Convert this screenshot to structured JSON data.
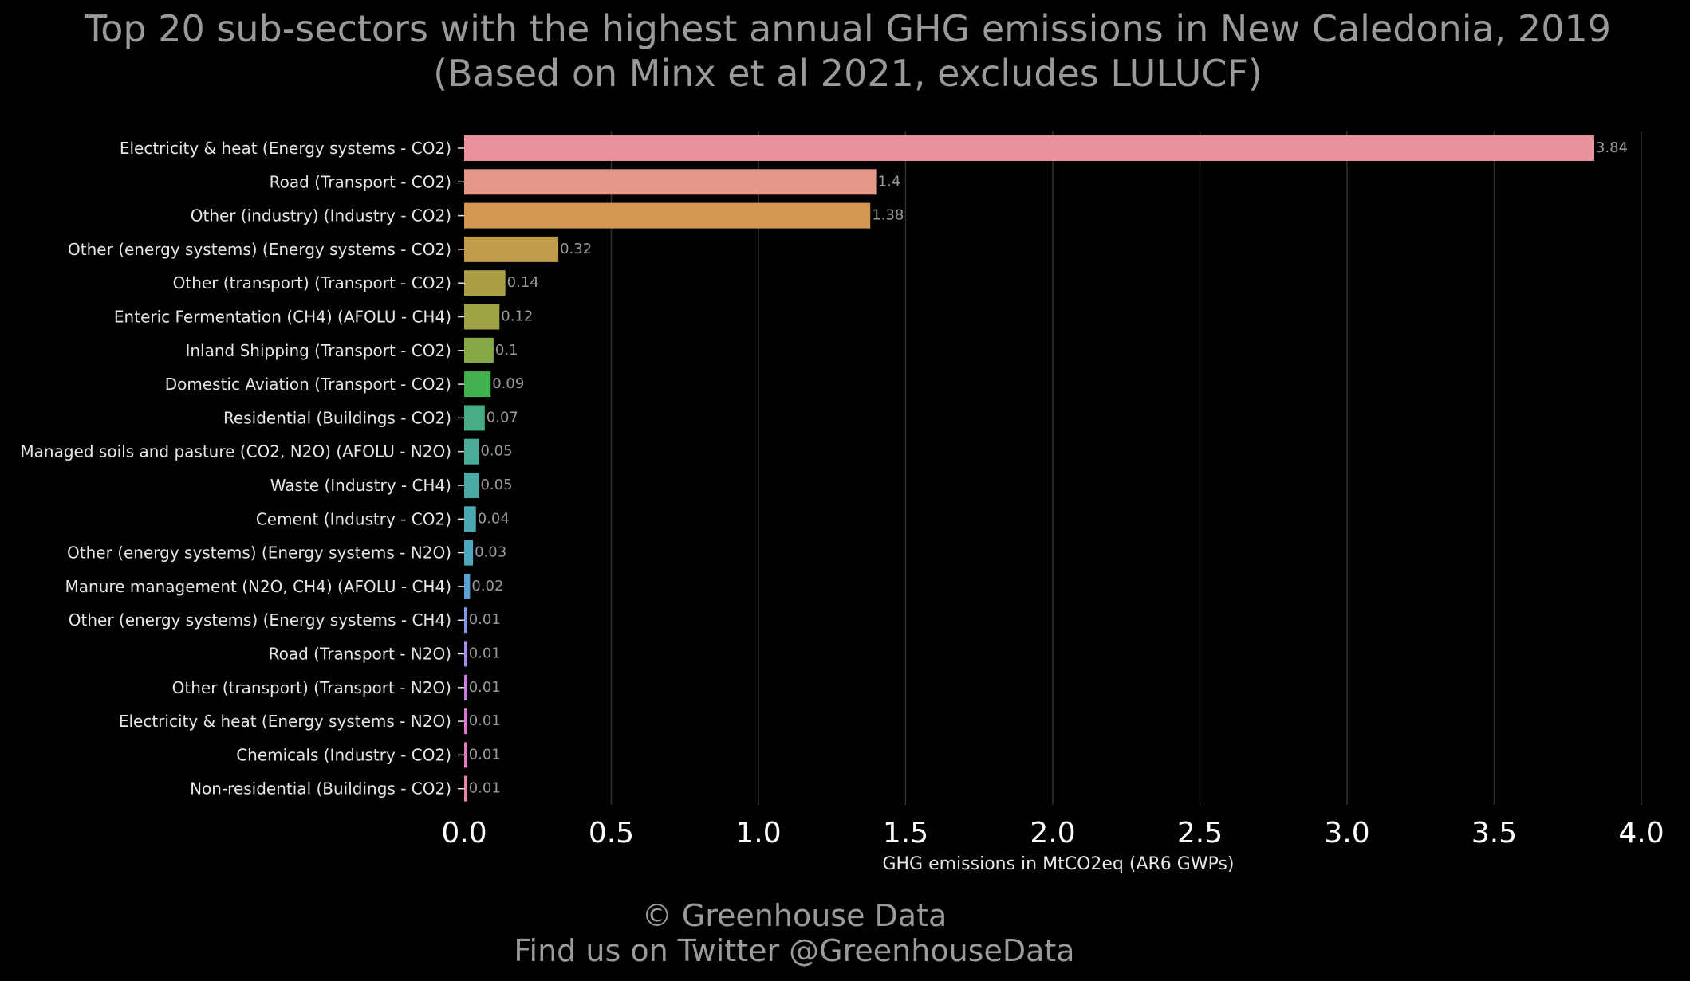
{
  "chart_data": {
    "type": "bar",
    "orientation": "horizontal",
    "title": "Top 20 sub-sectors with the highest annual GHG emissions in New Caledonia, 2019",
    "subtitle": "(Based on Minx et al 2021, excludes LULUCF)",
    "xlabel": "GHG emissions in MtCO2eq (AR6 GWPs)",
    "ylabel": "",
    "xlim": [
      0,
      4
    ],
    "xticks": [
      "0.0",
      "0.5",
      "1.0",
      "1.5",
      "2.0",
      "2.5",
      "3.0",
      "3.5",
      "4.0"
    ],
    "grid": "vertical",
    "categories": [
      "Electricity & heat (Energy systems - CO2)",
      "Road (Transport - CO2)",
      "Other (industry) (Industry - CO2)",
      "Other (energy systems) (Energy systems - CO2)",
      "Other (transport) (Transport - CO2)",
      "Enteric Fermentation (CH4) (AFOLU - CH4)",
      "Inland Shipping (Transport - CO2)",
      "Domestic Aviation (Transport - CO2)",
      "Residential (Buildings - CO2)",
      "Managed soils and pasture (CO2, N2O) (AFOLU - N2O)",
      "Waste (Industry - CH4)",
      "Cement (Industry - CO2)",
      "Other (energy systems) (Energy systems - N2O)",
      "Manure management (N2O, CH4) (AFOLU - CH4)",
      "Other (energy systems) (Energy systems - CH4)",
      "Road (Transport - N2O)",
      "Other (transport) (Transport - N2O)",
      "Electricity & heat (Energy systems - N2O)",
      "Chemicals (Industry - CO2)",
      "Non-residential (Buildings - CO2)"
    ],
    "values": [
      3.84,
      1.4,
      1.38,
      0.32,
      0.14,
      0.12,
      0.1,
      0.09,
      0.07,
      0.05,
      0.05,
      0.04,
      0.03,
      0.02,
      0.01,
      0.01,
      0.01,
      0.01,
      0.01,
      0.01
    ],
    "value_labels": [
      "3.84",
      "1.4",
      "1.38",
      "0.32",
      "0.14",
      "0.12",
      "0.1",
      "0.09",
      "0.07",
      "0.05",
      "0.05",
      "0.04",
      "0.03",
      "0.02",
      "0.01",
      "0.01",
      "0.01",
      "0.01",
      "0.01",
      "0.01"
    ],
    "colors": [
      "#e8929d",
      "#e5988a",
      "#d49653",
      "#c09b4a",
      "#aa9f43",
      "#9ea343",
      "#85a947",
      "#42b04f",
      "#47ad84",
      "#49ac97",
      "#4aaba4",
      "#4aa9b0",
      "#4ba8bd",
      "#5aa2d6",
      "#8397e6",
      "#a68bea",
      "#c77de2",
      "#de76d2",
      "#e479c0",
      "#e883ab"
    ],
    "background": "#000000"
  },
  "credits": {
    "line1": "© Greenhouse Data",
    "line2": "Find us on Twitter @GreenhouseData"
  }
}
